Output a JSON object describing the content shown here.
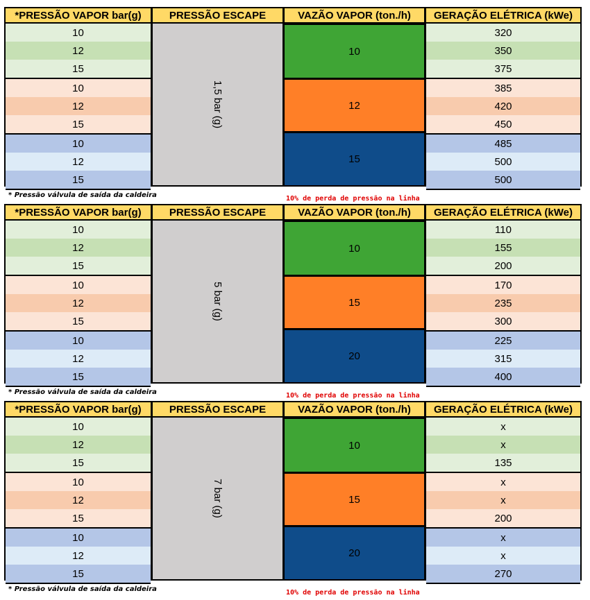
{
  "headers": {
    "steam_pressure": "*PRESSÃO VAPOR bar(g)",
    "exhaust_pressure": "PRESSÃO ESCAPE",
    "steam_flow": "VAZÃO  VAPOR (ton./h)",
    "power": "GERAÇÃO ELÉTRICA (kWe)"
  },
  "footnote": "*  Pressão válvula de saída da caldeira",
  "line_loss_note": "10% de perda de pressão na linha",
  "tables": [
    {
      "exhaust": "1,5 bar (g)",
      "flows": [
        "10",
        "12",
        "15"
      ],
      "pressures": [
        "10",
        "12",
        "15",
        "10",
        "12",
        "15",
        "10",
        "12",
        "15"
      ],
      "power": [
        "320",
        "350",
        "375",
        "385",
        "420",
        "450",
        "485",
        "500",
        "500"
      ]
    },
    {
      "exhaust": "5 bar (g)",
      "flows": [
        "10",
        "15",
        "20"
      ],
      "pressures": [
        "10",
        "12",
        "15",
        "10",
        "12",
        "15",
        "10",
        "12",
        "15"
      ],
      "power": [
        "110",
        "155",
        "200",
        "170",
        "235",
        "300",
        "225",
        "315",
        "400"
      ]
    },
    {
      "exhaust": "7 bar (g)",
      "flows": [
        "10",
        "15",
        "20"
      ],
      "pressures": [
        "10",
        "12",
        "15",
        "10",
        "12",
        "15",
        "10",
        "12",
        "15"
      ],
      "power": [
        "x",
        "x",
        "135",
        "x",
        "x",
        "200",
        "x",
        "x",
        "270"
      ]
    }
  ]
}
